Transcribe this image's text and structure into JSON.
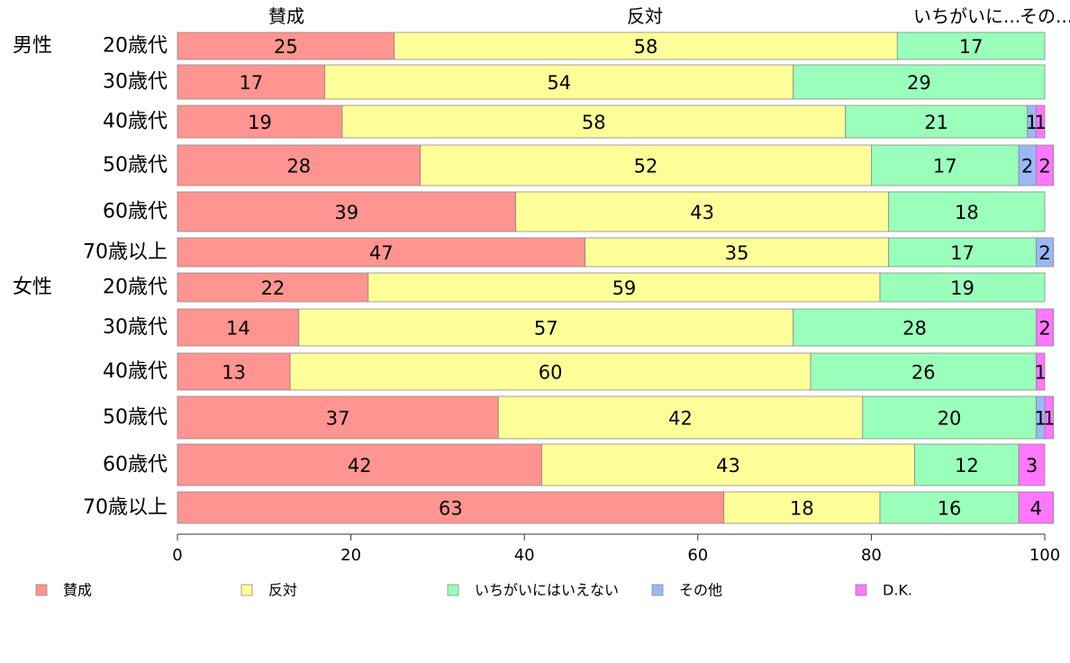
{
  "chart_data": {
    "type": "bar",
    "orientation": "horizontal",
    "stacked": true,
    "xlim": [
      0,
      100
    ],
    "xticks": [
      0,
      20,
      40,
      60,
      80,
      100
    ],
    "legend_position": "bottom",
    "top_labels": [
      "賛成",
      "反対",
      "いちがいに...",
      "その..."
    ],
    "series": [
      {
        "name": "賛成",
        "color": "#ff9490"
      },
      {
        "name": "反対",
        "color": "#ffff99"
      },
      {
        "name": "いちがいにはいえない",
        "color": "#99ffbb"
      },
      {
        "name": "その他",
        "color": "#99b8f5"
      },
      {
        "name": "D.K.",
        "color": "#ff77ff"
      }
    ],
    "rows": [
      {
        "group": "男性",
        "label": "20歳代",
        "values": [
          25,
          58,
          17,
          0,
          0
        ]
      },
      {
        "group": "",
        "label": "30歳代",
        "values": [
          17,
          54,
          29,
          0,
          0
        ]
      },
      {
        "group": "",
        "label": "40歳代",
        "values": [
          19,
          58,
          21,
          1,
          1
        ]
      },
      {
        "group": "",
        "label": "50歳代",
        "values": [
          28,
          52,
          17,
          2,
          2
        ]
      },
      {
        "group": "",
        "label": "60歳代",
        "values": [
          39,
          43,
          18,
          0,
          0
        ]
      },
      {
        "group": "",
        "label": "70歳以上",
        "values": [
          47,
          35,
          17,
          2,
          0
        ]
      },
      {
        "group": "女性",
        "label": "20歳代",
        "values": [
          22,
          59,
          19,
          0,
          0
        ]
      },
      {
        "group": "",
        "label": "30歳代",
        "values": [
          14,
          57,
          28,
          0,
          2
        ]
      },
      {
        "group": "",
        "label": "40歳代",
        "values": [
          13,
          60,
          26,
          0,
          1
        ]
      },
      {
        "group": "",
        "label": "50歳代",
        "values": [
          37,
          42,
          20,
          1,
          1
        ]
      },
      {
        "group": "",
        "label": "60歳代",
        "values": [
          42,
          43,
          12,
          0,
          3
        ]
      },
      {
        "group": "",
        "label": "70歳以上",
        "values": [
          63,
          18,
          16,
          0,
          4
        ]
      }
    ]
  }
}
